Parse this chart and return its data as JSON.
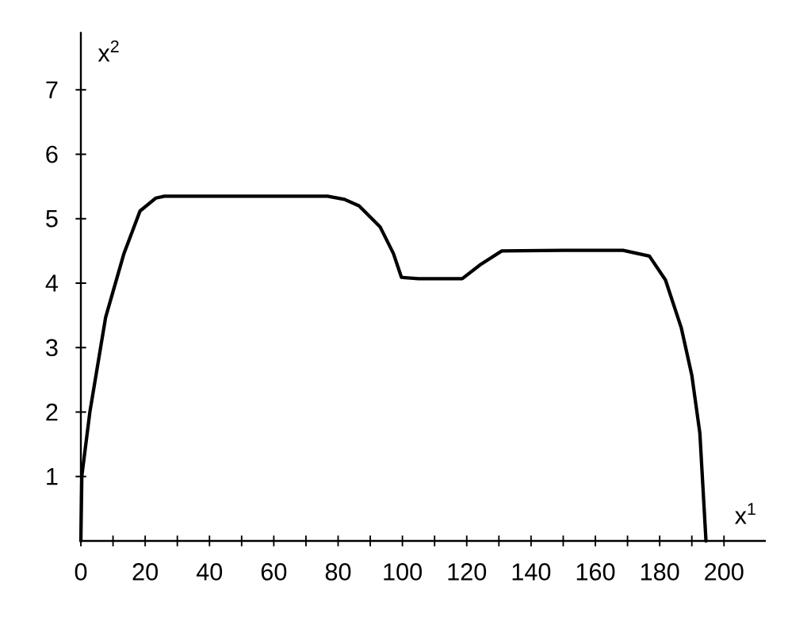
{
  "chart_data": {
    "type": "line",
    "xlabel": "x$^{1}$",
    "ylabel": "x$^{2}$",
    "series": [
      {
        "color": "#000000",
        "x": [
          0,
          0.3,
          2.8,
          7.7,
          13.4,
          18.4,
          23.3,
          26,
          38.9,
          76.7,
          82,
          86.5,
          93.1,
          97.2,
          99.7,
          105,
          118.6,
          124.3,
          130.9,
          150,
          168.6,
          176.8,
          181.8,
          186.7,
          190,
          192.5,
          194.4
        ],
        "values": [
          0,
          1.01,
          2.0,
          3.47,
          4.46,
          5.12,
          5.32,
          5.35,
          5.35,
          5.35,
          5.3,
          5.2,
          4.87,
          4.46,
          4.09,
          4.07,
          4.07,
          4.29,
          4.5,
          4.51,
          4.51,
          4.42,
          4.05,
          3.31,
          2.57,
          1.67,
          0
        ]
      }
    ],
    "xlim": [
      0,
      213
    ],
    "ylim": [
      0,
      7.9
    ],
    "xticks": [
      0,
      {
        "value": 10,
        "label": null
      },
      20,
      {
        "value": 30,
        "label": null
      },
      40,
      {
        "value": 50,
        "label": null
      },
      60,
      {
        "value": 70,
        "label": null
      },
      80,
      {
        "value": 90,
        "label": null
      },
      100,
      {
        "value": 110,
        "label": null
      },
      120,
      {
        "value": 130,
        "label": null
      },
      140,
      {
        "value": 150,
        "label": null
      },
      160,
      {
        "value": 170,
        "label": null
      },
      180,
      {
        "value": 190,
        "label": null
      },
      200
    ],
    "yticks": [
      1,
      2,
      3,
      4,
      5,
      6,
      7
    ],
    "grid": false,
    "marker": "none",
    "line_style": "solid"
  }
}
